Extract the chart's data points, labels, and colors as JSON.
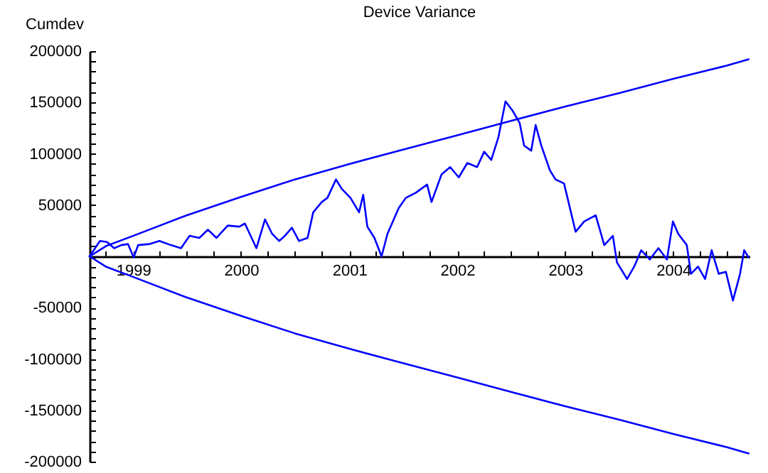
{
  "chart_data": {
    "type": "line",
    "title": "Device Variance",
    "ylabel": "Cumdev",
    "xlim": [
      "1998-08-07",
      "2004-09-15"
    ],
    "ylim": [
      -200000,
      200000
    ],
    "xticks": [
      {
        "value": "1998-10-01",
        "label": null
      },
      {
        "value": "1999-01-01",
        "label": "1999"
      },
      {
        "value": "1999-04-01",
        "label": null
      },
      {
        "value": "1999-07-01",
        "label": null
      },
      {
        "value": "1999-10-01",
        "label": null
      },
      {
        "value": "2000-01-01",
        "label": "2000"
      },
      {
        "value": "2000-04-01",
        "label": null
      },
      {
        "value": "2000-07-01",
        "label": null
      },
      {
        "value": "2000-10-01",
        "label": null
      },
      {
        "value": "2001-01-01",
        "label": "2001"
      },
      {
        "value": "2001-04-01",
        "label": null
      },
      {
        "value": "2001-07-01",
        "label": null
      },
      {
        "value": "2001-10-01",
        "label": null
      },
      {
        "value": "2002-01-01",
        "label": "2002"
      },
      {
        "value": "2002-04-01",
        "label": null
      },
      {
        "value": "2002-07-01",
        "label": null
      },
      {
        "value": "2002-10-01",
        "label": null
      },
      {
        "value": "2003-01-01",
        "label": "2003"
      },
      {
        "value": "2003-04-01",
        "label": null
      },
      {
        "value": "2003-07-01",
        "label": null
      },
      {
        "value": "2003-10-01",
        "label": null
      },
      {
        "value": "2004-01-01",
        "label": "2004"
      },
      {
        "value": "2004-04-01",
        "label": null
      },
      {
        "value": "2004-07-01",
        "label": null
      }
    ],
    "yticks": [
      -200000,
      {
        "value": -190000,
        "label": null
      },
      {
        "value": -180000,
        "label": null
      },
      {
        "value": -170000,
        "label": null
      },
      {
        "value": -160000,
        "label": null
      },
      -150000,
      {
        "value": -140000,
        "label": null
      },
      {
        "value": -130000,
        "label": null
      },
      {
        "value": -120000,
        "label": null
      },
      {
        "value": -110000,
        "label": null
      },
      -100000,
      {
        "value": -90000,
        "label": null
      },
      {
        "value": -80000,
        "label": null
      },
      {
        "value": -70000,
        "label": null
      },
      {
        "value": -60000,
        "label": null
      },
      -50000,
      {
        "value": -40000,
        "label": null
      },
      {
        "value": -30000,
        "label": null
      },
      {
        "value": -20000,
        "label": null
      },
      {
        "value": -10000,
        "label": null
      },
      {
        "value": 0,
        "label": null
      },
      {
        "value": 10000,
        "label": null
      },
      {
        "value": 20000,
        "label": null
      },
      {
        "value": 30000,
        "label": null
      },
      {
        "value": 40000,
        "label": null
      },
      50000,
      {
        "value": 60000,
        "label": null
      },
      {
        "value": 70000,
        "label": null
      },
      {
        "value": 80000,
        "label": null
      },
      {
        "value": 90000,
        "label": null
      },
      100000,
      {
        "value": 110000,
        "label": null
      },
      {
        "value": 120000,
        "label": null
      },
      {
        "value": 130000,
        "label": null
      },
      {
        "value": 140000,
        "label": null
      },
      150000,
      {
        "value": 160000,
        "label": null
      },
      {
        "value": 170000,
        "label": null
      },
      {
        "value": 180000,
        "label": null
      },
      {
        "value": 190000,
        "label": null
      },
      200000
    ],
    "series": [
      {
        "color": "#0000ff",
        "x": [
          "1998-08-07",
          "1998-09-11",
          "1998-10-05",
          "1998-10-29",
          "1998-11-22",
          "1998-12-15",
          "1999-01-03",
          "1999-01-18",
          "1999-02-25",
          "1999-03-31",
          "1999-05-09",
          "1999-06-12",
          "1999-07-11",
          "1999-08-13",
          "1999-09-11",
          "1999-10-10",
          "1999-11-17",
          "1999-12-26",
          "2000-01-14",
          "2000-02-22",
          "2000-03-22",
          "2000-04-15",
          "2000-05-09",
          "2000-05-28",
          "2000-06-21",
          "2000-07-15",
          "2000-08-13",
          "2000-09-01",
          "2000-09-30",
          "2000-10-19",
          "2000-11-17",
          "2000-12-06",
          "2001-01-05",
          "2001-02-03",
          "2001-02-17",
          "2001-03-03",
          "2001-03-27",
          "2001-04-20",
          "2001-05-10",
          "2001-06-17",
          "2001-07-11",
          "2001-08-14",
          "2001-09-21",
          "2001-10-06",
          "2001-11-09",
          "2001-12-08",
          "2002-01-06",
          "2002-02-04",
          "2002-03-09",
          "2002-04-02",
          "2002-04-26",
          "2002-05-20",
          "2002-06-13",
          "2002-07-07",
          "2002-07-31",
          "2002-08-15",
          "2002-09-08",
          "2002-09-23",
          "2002-10-12",
          "2002-11-10",
          "2002-11-29",
          "2002-12-28",
          "2003-01-17",
          "2003-02-05",
          "2003-03-06",
          "2003-04-14",
          "2003-05-13",
          "2003-06-11",
          "2003-06-25",
          "2003-07-29",
          "2003-08-22",
          "2003-09-15",
          "2003-10-14",
          "2003-11-12",
          "2003-12-11",
          "2003-12-31",
          "2004-01-18",
          "2004-02-16",
          "2004-03-01",
          "2004-03-25",
          "2004-04-18",
          "2004-05-10",
          "2004-06-03",
          "2004-06-27",
          "2004-07-21",
          "2004-08-14",
          "2004-08-28",
          "2004-09-12"
        ],
        "values": [
          0,
          15000,
          14000,
          8000,
          11000,
          12000,
          -1000,
          11000,
          12000,
          15000,
          11000,
          8000,
          20000,
          18000,
          26000,
          18000,
          30000,
          29000,
          32000,
          8000,
          36000,
          22000,
          15000,
          20000,
          28000,
          15000,
          18000,
          43000,
          53000,
          57000,
          75000,
          66000,
          57000,
          43000,
          60000,
          29000,
          18000,
          0,
          22000,
          47000,
          57000,
          62000,
          70000,
          53000,
          80000,
          87000,
          77000,
          91000,
          87000,
          102000,
          94000,
          116000,
          151000,
          142000,
          130000,
          108000,
          103000,
          128000,
          108000,
          84000,
          75000,
          71000,
          47000,
          24000,
          34000,
          40000,
          11000,
          20000,
          -6000,
          -22000,
          -10000,
          6000,
          -3000,
          8000,
          -3000,
          34000,
          22000,
          11000,
          -17000,
          -10000,
          -22000,
          6000,
          -17000,
          -15000,
          -43000,
          -17000,
          6000,
          -1000
        ]
      },
      {
        "color": "#0000ff",
        "x": [
          "1998-08-07",
          "1998-10-01",
          "1999-01-01",
          "1999-07-01",
          "2000-01-01",
          "2000-07-01",
          "2001-01-01",
          "2001-07-01",
          "2002-01-01",
          "2002-07-01",
          "2003-01-01",
          "2003-07-01",
          "2004-01-01",
          "2004-07-01",
          "2004-09-12"
        ],
        "values": [
          0,
          10000,
          20000,
          40000,
          58000,
          75000,
          90000,
          104000,
          118000,
          132000,
          146000,
          159000,
          173000,
          186000,
          192000
        ]
      },
      {
        "color": "#0000ff",
        "x": [
          "1998-08-07",
          "1998-10-01",
          "1999-01-01",
          "1999-07-01",
          "2000-01-01",
          "2000-07-01",
          "2001-01-01",
          "2001-07-01",
          "2002-01-01",
          "2002-07-01",
          "2003-01-01",
          "2003-07-01",
          "2004-01-01",
          "2004-07-01",
          "2004-09-12"
        ],
        "values": [
          0,
          -10000,
          -20000,
          -40000,
          -58000,
          -75000,
          -90000,
          -104000,
          -118000,
          -132000,
          -146000,
          -159000,
          -173000,
          -186000,
          -192000
        ]
      }
    ]
  }
}
